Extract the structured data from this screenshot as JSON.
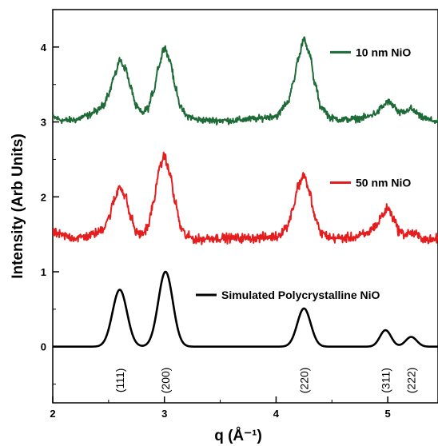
{
  "chart_data": {
    "type": "line",
    "title": "",
    "xlabel": "q (Å⁻¹)",
    "ylabel": "Intensity (Arb Units)",
    "xlim": [
      2.0,
      5.45
    ],
    "ylim": [
      -0.75,
      4.5
    ],
    "x_ticks": [
      {
        "value": 2,
        "label": "2"
      },
      {
        "value": 3,
        "label": "3"
      },
      {
        "value": 4,
        "label": "4"
      },
      {
        "value": 5,
        "label": "5"
      }
    ],
    "y_ticks": [
      {
        "value": 0,
        "label": "0"
      },
      {
        "value": 1,
        "label": "1"
      },
      {
        "value": 2,
        "label": "2"
      },
      {
        "value": 3,
        "label": "3"
      },
      {
        "value": 4,
        "label": "4"
      }
    ],
    "grid": false,
    "legend_position": "inline-right",
    "series": [
      {
        "name": "10 nm NiO",
        "color": "#1f6b38",
        "noise": 0.065,
        "x": [
          2.0,
          2.1,
          2.2,
          2.3,
          2.4,
          2.45,
          2.5,
          2.55,
          2.6,
          2.65,
          2.7,
          2.75,
          2.8,
          2.85,
          2.9,
          2.95,
          3.0,
          3.05,
          3.1,
          3.15,
          3.2,
          3.3,
          3.4,
          3.6,
          3.8,
          4.0,
          4.1,
          4.15,
          4.2,
          4.25,
          4.3,
          4.35,
          4.4,
          4.5,
          4.6,
          4.7,
          4.8,
          4.9,
          4.95,
          5.0,
          5.05,
          5.1,
          5.15,
          5.2,
          5.25,
          5.3,
          5.4,
          5.45
        ],
        "y": [
          3.06,
          3.02,
          3.03,
          3.08,
          3.15,
          3.22,
          3.38,
          3.6,
          3.82,
          3.72,
          3.45,
          3.2,
          3.12,
          3.18,
          3.4,
          3.75,
          4.0,
          3.82,
          3.45,
          3.18,
          3.08,
          3.03,
          3.02,
          3.02,
          3.04,
          3.08,
          3.25,
          3.5,
          3.85,
          4.12,
          3.9,
          3.5,
          3.2,
          3.05,
          3.03,
          3.04,
          3.06,
          3.12,
          3.2,
          3.27,
          3.22,
          3.12,
          3.13,
          3.18,
          3.13,
          3.06,
          3.02,
          3.0
        ]
      },
      {
        "name": "50 nm NiO",
        "color": "#e41e1e",
        "noise": 0.09,
        "x": [
          2.0,
          2.1,
          2.2,
          2.3,
          2.4,
          2.45,
          2.5,
          2.55,
          2.6,
          2.65,
          2.7,
          2.75,
          2.8,
          2.85,
          2.9,
          2.95,
          3.0,
          3.05,
          3.1,
          3.15,
          3.2,
          3.3,
          3.4,
          3.6,
          3.8,
          4.0,
          4.1,
          4.15,
          4.2,
          4.25,
          4.3,
          4.35,
          4.4,
          4.5,
          4.6,
          4.7,
          4.8,
          4.9,
          4.95,
          5.0,
          5.05,
          5.1,
          5.15,
          5.2,
          5.25,
          5.3,
          5.4,
          5.45
        ],
        "y": [
          1.52,
          1.48,
          1.45,
          1.47,
          1.52,
          1.58,
          1.72,
          1.95,
          2.15,
          2.0,
          1.72,
          1.52,
          1.5,
          1.6,
          1.9,
          2.35,
          2.55,
          2.3,
          1.9,
          1.58,
          1.47,
          1.43,
          1.45,
          1.45,
          1.45,
          1.47,
          1.6,
          1.85,
          2.15,
          2.3,
          2.05,
          1.72,
          1.52,
          1.45,
          1.45,
          1.46,
          1.5,
          1.62,
          1.75,
          1.85,
          1.72,
          1.55,
          1.5,
          1.52,
          1.5,
          1.45,
          1.42,
          1.45
        ]
      },
      {
        "name": "Simulated Polycrystalline NiO",
        "color": "#000000",
        "noise": 0,
        "peaks": [
          {
            "center": 2.6,
            "height": 0.76,
            "width": 0.065
          },
          {
            "center": 3.01,
            "height": 1.0,
            "width": 0.065
          },
          {
            "center": 4.25,
            "height": 0.51,
            "width": 0.06
          },
          {
            "center": 4.98,
            "height": 0.22,
            "width": 0.05
          },
          {
            "center": 5.21,
            "height": 0.13,
            "width": 0.05
          }
        ]
      }
    ],
    "annotations": [
      {
        "text": "(111)",
        "x": 2.6
      },
      {
        "text": "(200)",
        "x": 3.01
      },
      {
        "text": "(220)",
        "x": 4.25
      },
      {
        "text": "(311)",
        "x": 4.98
      },
      {
        "text": "(222)",
        "x": 5.21
      }
    ]
  }
}
